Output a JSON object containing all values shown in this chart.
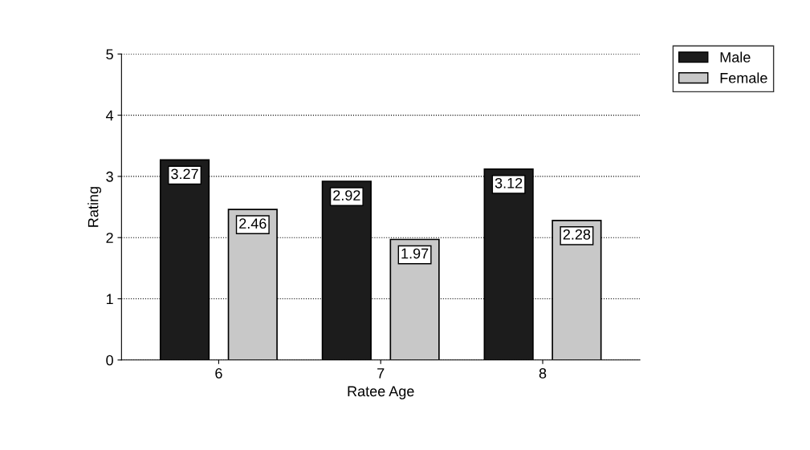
{
  "chart_data": {
    "type": "bar",
    "xlabel": "Ratee Age",
    "ylabel": "Rating",
    "categories": [
      "6",
      "7",
      "8"
    ],
    "series": [
      {
        "name": "Male",
        "color": "#1c1c1c",
        "values": [
          3.27,
          2.92,
          3.12
        ]
      },
      {
        "name": "Female",
        "color": "#c8c8c8",
        "values": [
          2.46,
          1.97,
          2.28
        ]
      }
    ],
    "ylim": [
      0,
      5
    ],
    "yticks": [
      0,
      1,
      2,
      3,
      4,
      5
    ],
    "grid": "y",
    "legend": "top right",
    "data_labels": true
  }
}
